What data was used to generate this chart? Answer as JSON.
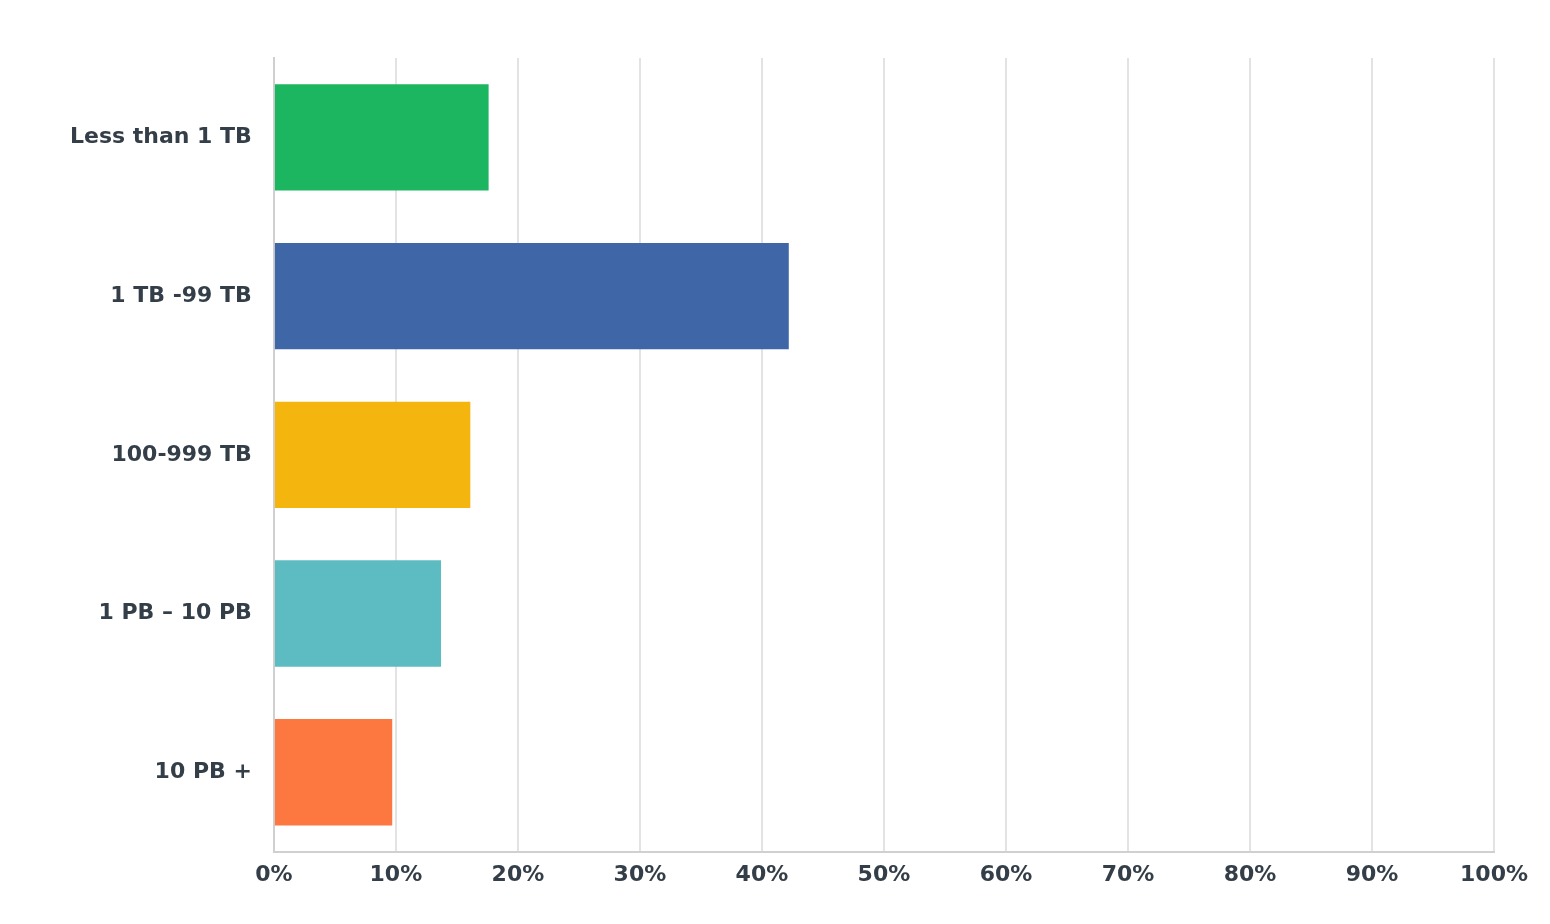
{
  "chart_data": {
    "type": "bar",
    "orientation": "horizontal",
    "categories": [
      "Less than 1 TB",
      "1 TB -99 TB",
      "100-999 TB",
      "1 PB – 10 PB",
      "10 PB +"
    ],
    "values": [
      17.6,
      42.2,
      16.1,
      13.7,
      9.7
    ],
    "colors": [
      "#1db660",
      "#3f66a6",
      "#f5b50f",
      "#5cbcc2",
      "#fd7841"
    ],
    "xlim": [
      0,
      100
    ],
    "xticks": [
      {
        "value": 0,
        "label": "0%"
      },
      {
        "value": 10,
        "label": "10%"
      },
      {
        "value": 20,
        "label": "20%"
      },
      {
        "value": 30,
        "label": "30%"
      },
      {
        "value": 40,
        "label": "40%"
      },
      {
        "value": 50,
        "label": "50%"
      },
      {
        "value": 60,
        "label": "60%"
      },
      {
        "value": 70,
        "label": "70%"
      },
      {
        "value": 80,
        "label": "80%"
      },
      {
        "value": 90,
        "label": "90%"
      },
      {
        "value": 100,
        "label": "100%"
      }
    ],
    "grid": "x",
    "legend": false
  }
}
